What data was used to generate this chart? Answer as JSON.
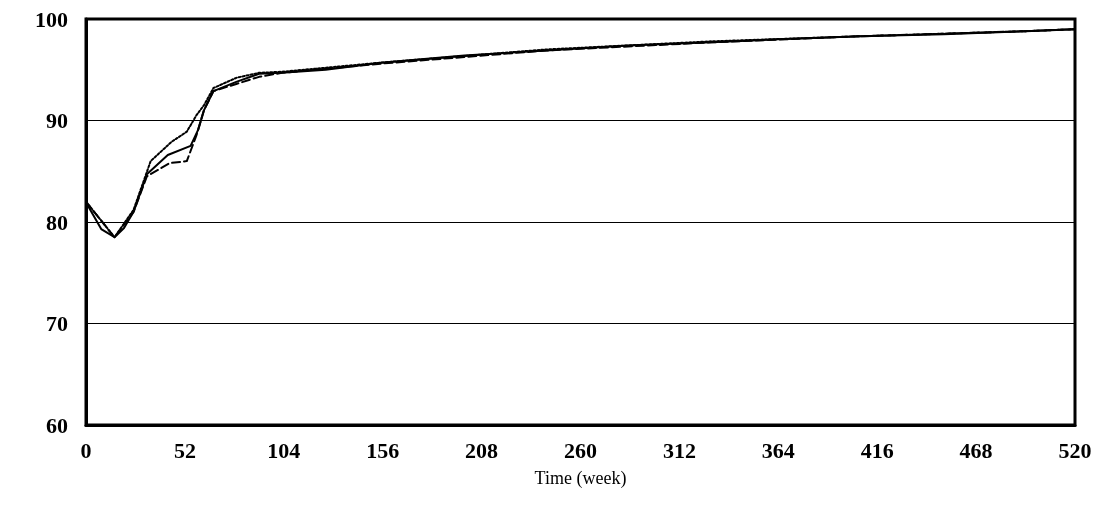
{
  "chart_data": {
    "type": "line",
    "xlabel": "Time (week)",
    "xlim": [
      0,
      520
    ],
    "xticks": [
      0,
      52,
      104,
      156,
      208,
      260,
      312,
      364,
      416,
      468,
      520
    ],
    "ylim": [
      60,
      100
    ],
    "yticks": [
      60,
      70,
      80,
      90,
      100
    ],
    "grid": "y",
    "marker": "none",
    "series": [
      {
        "color": "#000000",
        "line_style": "solid",
        "x": [
          0,
          1,
          8,
          15,
          20,
          25,
          32,
          43,
          55,
          59,
          62,
          67,
          79,
          91,
          103,
          126,
          155,
          199,
          242,
          285,
          329,
          364,
          407,
          451,
          494,
          520
        ],
        "values": [
          82,
          81.6,
          79.3,
          78.5,
          79.4,
          81,
          84.7,
          86.6,
          87.5,
          89.1,
          91,
          92.9,
          93.8,
          94.6,
          94.7,
          95,
          95.7,
          96.4,
          96.9,
          97.4,
          97.7,
          98,
          98.3,
          98.5,
          98.8,
          99
        ]
      },
      {
        "color": "#000000",
        "line_style": "dashed",
        "x": [
          0,
          15,
          25,
          32,
          44,
          53,
          58,
          62,
          67,
          79,
          91,
          103,
          155,
          242,
          329,
          407,
          494,
          520
        ],
        "values": [
          82,
          78.5,
          81,
          84.5,
          85.8,
          86,
          88.5,
          91,
          92.9,
          93.6,
          94.3,
          94.7,
          95.6,
          96.9,
          97.7,
          98.3,
          98.8,
          99
        ]
      },
      {
        "color": "#000000",
        "line_style": "dotted",
        "x": [
          0,
          15,
          25,
          34,
          45,
          53,
          58,
          62,
          67,
          79,
          91,
          103,
          155,
          242,
          329,
          407,
          494,
          520
        ],
        "values": [
          82,
          78.5,
          81.2,
          86,
          87.9,
          88.9,
          90.5,
          91.5,
          93.2,
          94.2,
          94.7,
          94.8,
          95.7,
          97,
          97.8,
          98.3,
          98.8,
          99
        ]
      }
    ]
  }
}
